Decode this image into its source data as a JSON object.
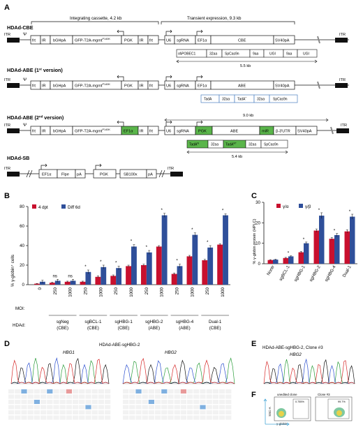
{
  "panel_labels": {
    "A": "A",
    "B": "B",
    "C": "C",
    "D": "D",
    "E": "E",
    "F": "F"
  },
  "panel_a": {
    "cbe": {
      "title": "HDAd-CBE",
      "integrating_label": "Integrating cassette, 4.2 kb",
      "transient_label": "Transient expression, 9.3 kb",
      "itr_left": "ITR",
      "psi": "Ψ",
      "itr_right": "ITR",
      "frt1": "frt",
      "ir1": "IR",
      "bghpa": "bGHpA",
      "gfp": "GFP-T2A-mgmt",
      "gfp_sup": "P140K",
      "pgk": "PGK",
      "ir2": "IR",
      "frt2": "frt",
      "u6": "U6",
      "sgrna": "sgRNA",
      "ef1a": "EF1α",
      "effector": "CBE",
      "sv40": "SV40pA",
      "sub": [
        "rAPOBEC1",
        "32aa",
        "SpCas9n",
        "9aa",
        "UGI",
        "9aa",
        "UGI"
      ],
      "size": "5.5 kb"
    },
    "abe1": {
      "title": "HDAd-ABE (1",
      "title_sup": "st",
      "title_end": " version)",
      "itr_left": "ITR",
      "psi": "Ψ",
      "itr_right": "ITR",
      "frt1": "frt",
      "ir1": "IR",
      "bghpa": "bGHpA",
      "gfp": "GFP-T2A-mgmt",
      "gfp_sup": "P140K",
      "pgk": "PGK",
      "ir2": "IR",
      "frt2": "frt",
      "u6": "U6",
      "sgrna": "sgRNA",
      "ef1a": "EF1α",
      "effector": "ABE",
      "sv40": "SV40pA",
      "sub": [
        "TadA",
        "32aa",
        "TadA",
        "32aa",
        "SpCas9n"
      ],
      "sub_sup": "*"
    },
    "abe2": {
      "title": "HDAd-ABE (2",
      "title_sup": "nd",
      "title_end": " version)",
      "size_top": "9.0 kb",
      "itr_left": "ITR",
      "psi": "Ψ",
      "itr_right": "ITR",
      "frt1": "frt",
      "ir1": "IR",
      "bghpa": "bGHpA",
      "gfp": "GFP-T2A-mgmt",
      "gfp_sup": "P140K",
      "ef1a_int": "EF1α",
      "ir2": "IR",
      "frt2": "frt",
      "u6": "U6",
      "sgrna": "sgRNA",
      "pgk": "PGK",
      "effector": "ABE",
      "mir": "miR",
      "utr": "β-3'UTR",
      "sv40": "SV40pA",
      "sub": [
        "TadA",
        "32aa",
        "TadA",
        "32aa",
        "SpCas9n"
      ],
      "sub_sup1": "N",
      "sub_sup2": "N*",
      "size": "5.4 kb"
    },
    "sb": {
      "title": "HDAd-SB",
      "itr_left": "ITR",
      "itr_right": "ITR",
      "ef1a": "EF1α",
      "flpe": "Flpe",
      "pa1": "pA",
      "pgk": "PGK",
      "sb100x": "SB100x",
      "pa2": "pA"
    }
  },
  "colors": {
    "series_4dpt": "#c8102e",
    "series_diff": "#2f4f9a",
    "green_box": "#5ab54a",
    "sub_box_border": "#4a7fc0"
  },
  "chart_data": [
    {
      "type": "bar",
      "panel": "B",
      "ylabel": "% γ-globin⁺ cells",
      "ylim": [
        0,
        80
      ],
      "yticks": [
        0,
        20,
        40,
        60,
        80
      ],
      "x_row_label": "MOI:",
      "hdad_label": "HDAd:",
      "moi": [
        "0",
        "250",
        "1000",
        "250",
        "1000",
        "250",
        "1000",
        "250",
        "1000",
        "250",
        "1000",
        "250",
        "1000"
      ],
      "groups": [
        {
          "name": "sgNeg",
          "type": "(CBE)"
        },
        {
          "name": "sgBCL-1",
          "type": "(CBE)"
        },
        {
          "name": "sgHBG-1",
          "type": "(CBE)"
        },
        {
          "name": "sgHBG-2",
          "type": "(ABE)"
        },
        {
          "name": "sgHBG-4",
          "type": "(ABE)"
        },
        {
          "name": "Dual-1",
          "type": "(CBE)"
        }
      ],
      "series": [
        {
          "name": "4 dpt",
          "values": [
            1,
            2,
            3,
            3,
            8,
            9,
            19,
            20,
            39,
            11,
            29,
            25,
            41
          ],
          "errors": [
            0.3,
            0.5,
            0.6,
            0.6,
            1,
            1,
            1,
            1,
            1,
            1,
            1,
            1,
            1
          ]
        },
        {
          "name": "Diff 6d",
          "values": [
            3,
            4,
            4,
            13,
            18,
            17,
            39,
            33,
            71,
            19,
            51,
            38,
            71
          ],
          "errors": [
            1.5,
            1.5,
            1.5,
            2,
            2,
            2,
            2,
            2,
            2,
            2,
            2,
            2,
            1.5
          ]
        }
      ],
      "annotations": [
        "",
        "ns",
        "ns",
        "*",
        "*",
        "*",
        "*",
        "*",
        "*",
        "*",
        "*",
        "*",
        "*"
      ],
      "legend_position": "top-left"
    },
    {
      "type": "bar",
      "panel": "C",
      "ylabel": "% γ-globin protein (HPLC)",
      "ylim": [
        0,
        30
      ],
      "yticks": [
        0,
        10,
        20,
        30
      ],
      "categories": [
        "Nontr",
        "sgBCL-1",
        "sgHBG-1",
        "sgHBG-2",
        "sgHBG-4",
        "Dual-1"
      ],
      "series": [
        {
          "name": "γ/α",
          "values": [
            1.8,
            2.8,
            5.6,
            16.2,
            12.2,
            15.8
          ],
          "errors": [
            0.2,
            0.3,
            0.4,
            0.8,
            0.6,
            0.8
          ]
        },
        {
          "name": "γ/β",
          "values": [
            2.0,
            3.6,
            10.0,
            23.5,
            14.0,
            23.0
          ],
          "errors": [
            0.2,
            0.3,
            0.6,
            1.4,
            0.8,
            1.2
          ]
        }
      ],
      "annotations": [
        "",
        "*",
        "*",
        "*",
        "*",
        "*"
      ],
      "legend_position": "top-left"
    }
  ],
  "panel_d": {
    "title": "HDAd-ABE-sgHBG-2",
    "gene1": "HBG1",
    "gene2": "HBG2"
  },
  "panel_e": {
    "title": "HDAd-ABE-sgHBG-2, Clone #3",
    "gene": "HBG2"
  },
  "panel_f": {
    "label1": "unedited clone",
    "label2": "Clone #3",
    "pct1": "0.755%",
    "pct2": "99.7%",
    "ylabel": "SSC-A",
    "xlabel": "γ-globin"
  }
}
